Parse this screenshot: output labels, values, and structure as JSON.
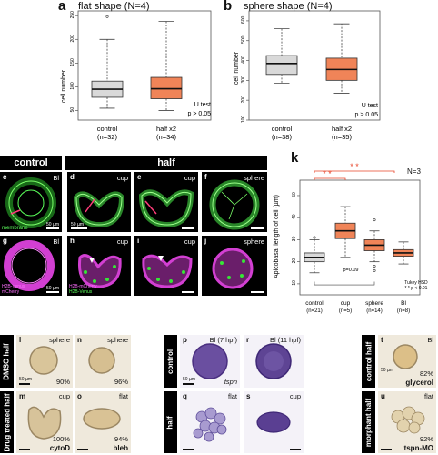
{
  "panel_a": {
    "letter": "a",
    "title": "flat shape (N=4)",
    "ylabel": "cell number",
    "yticks": [
      "50",
      "100",
      "150",
      "200",
      "250"
    ],
    "groups": [
      {
        "name": "control",
        "n": "(n=32)"
      },
      {
        "name": "half x2",
        "n": "(n=34)"
      }
    ],
    "test": "U test",
    "pvalue": "p > 0.05"
  },
  "panel_b": {
    "letter": "b",
    "title": "sphere shape (N=4)",
    "ylabel": "cell number",
    "yticks": [
      "100",
      "200",
      "300",
      "400",
      "500",
      "600"
    ],
    "groups": [
      {
        "name": "control",
        "n": "(n=38)"
      },
      {
        "name": "half x2",
        "n": "(n=35)"
      }
    ],
    "test": "U test",
    "pvalue": "p > 0.05"
  },
  "headers": {
    "control": "control",
    "half": "half"
  },
  "panels_cg": {
    "c": {
      "letter": "c",
      "tag": "Bl",
      "stain": "membrane",
      "scale": "50 µm"
    },
    "d": {
      "letter": "d",
      "tag": "cup",
      "scale": "50 µm"
    },
    "e": {
      "letter": "e",
      "tag": "cup"
    },
    "f": {
      "letter": "f",
      "tag": "sphere"
    },
    "g": {
      "letter": "g",
      "tag": "Bl",
      "stain1": "H2B-Venus",
      "stain2": "mCherry",
      "scale": "50 µm"
    },
    "h": {
      "letter": "h",
      "tag": "cup",
      "stain1": "H2B-mCherry",
      "stain2": "H2B-Venus"
    },
    "i": {
      "letter": "i",
      "tag": "cup"
    },
    "j": {
      "letter": "j",
      "tag": "sphere"
    }
  },
  "panel_k": {
    "letter": "k",
    "ylabel": "Apicobasal length of cell (µm)",
    "yticks": [
      "10",
      "20",
      "30",
      "40",
      "50"
    ],
    "N": "N=3",
    "categories": [
      "control",
      "cup",
      "sphere",
      "Bl"
    ],
    "ns": [
      "(n=21)",
      "(n=5)",
      "(n=14)",
      "(n=8)"
    ],
    "stars1": "* *",
    "stars2": "* *",
    "pnote": "p=0.09",
    "test1": "Tukey HSD",
    "test2": "* * p < 0.01"
  },
  "bottom_left": {
    "side1": "DMSO half",
    "side2": "Drug treated half",
    "l": {
      "letter": "l",
      "tag": "sphere",
      "pct": "90%",
      "scale": "50 µm"
    },
    "n": {
      "letter": "n",
      "tag": "sphere",
      "pct": "96%"
    },
    "m": {
      "letter": "m",
      "tag": "cup",
      "pct": "100%",
      "drug": "cytoD"
    },
    "o": {
      "letter": "o",
      "tag": "flat",
      "pct": "94%",
      "drug": "bleb"
    }
  },
  "bottom_mid": {
    "side1": "control",
    "side2": "half",
    "p": {
      "letter": "p",
      "tag": "Bl (7 hpf)",
      "gene": "tspn",
      "scale": "50 µm"
    },
    "r": {
      "letter": "r",
      "tag": "Bl (11 hpf)"
    },
    "q": {
      "letter": "q",
      "tag": "flat"
    },
    "s": {
      "letter": "s",
      "tag": "cup"
    }
  },
  "bottom_right": {
    "side1": "control half",
    "side2": "morphant half",
    "t": {
      "letter": "t",
      "tag": "Bl",
      "pct": "82%",
      "drug": "glycerol",
      "scale": "50 µm"
    },
    "u": {
      "letter": "u",
      "tag": "flat",
      "pct": "92%",
      "drug": "tspn-MO"
    }
  },
  "chart_data": [
    {
      "type": "box",
      "title": "flat shape (N=4)",
      "ylabel": "cell number",
      "ylim": [
        30,
        260
      ],
      "categories": [
        "control",
        "half x2"
      ],
      "boxes": [
        {
          "min": 55,
          "q1": 78,
          "median": 95,
          "q3": 112,
          "max": 200,
          "color": "#d9d9d9",
          "outliers": [
            248
          ]
        },
        {
          "min": 50,
          "q1": 75,
          "median": 96,
          "q3": 120,
          "max": 238,
          "color": "#f08458",
          "outliers": []
        }
      ]
    },
    {
      "type": "box",
      "title": "sphere shape (N=4)",
      "ylabel": "cell number",
      "ylim": [
        100,
        650
      ],
      "categories": [
        "control",
        "half x2"
      ],
      "boxes": [
        {
          "min": 285,
          "q1": 330,
          "median": 385,
          "q3": 425,
          "max": 560,
          "color": "#d9d9d9",
          "outliers": []
        },
        {
          "min": 235,
          "q1": 300,
          "median": 355,
          "q3": 412,
          "max": 585,
          "color": "#f08458",
          "outliers": []
        }
      ]
    },
    {
      "type": "box",
      "ylabel": "Apicobasal length of cell (µm)",
      "ylim": [
        5,
        57
      ],
      "categories": [
        "control",
        "cup",
        "sphere",
        "Bl"
      ],
      "boxes": [
        {
          "min": 15,
          "q1": 20,
          "median": 22,
          "q3": 24,
          "max": 30,
          "color": "#d9d9d9",
          "outliers": [
            31
          ]
        },
        {
          "min": 22,
          "q1": 30.5,
          "median": 34,
          "q3": 37.5,
          "max": 45,
          "color": "#f08458",
          "outliers": []
        },
        {
          "min": 20,
          "q1": 25,
          "median": 27.5,
          "q3": 30,
          "max": 34,
          "color": "#f08458",
          "outliers": [
            39,
            16,
            18
          ]
        },
        {
          "min": 19,
          "q1": 22.5,
          "median": 24,
          "q3": 25.5,
          "max": 29,
          "color": "#f08458",
          "outliers": []
        }
      ]
    }
  ]
}
